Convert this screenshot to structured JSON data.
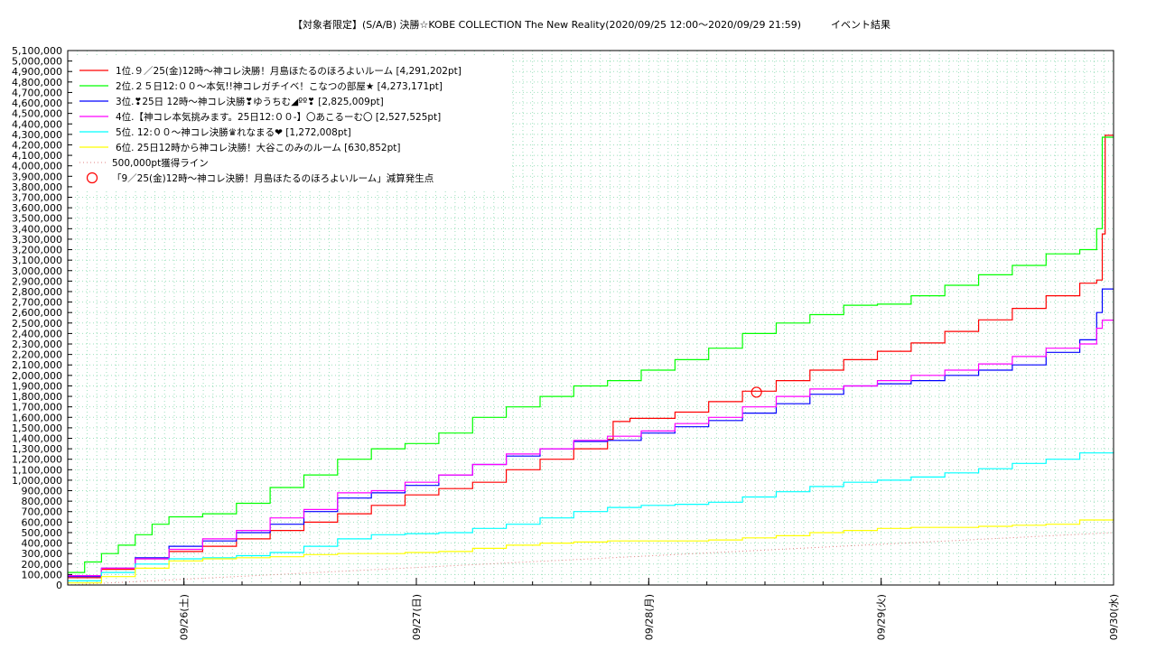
{
  "chart_data": {
    "type": "line",
    "title": "【対象者限定】(S/A/B) 決勝☆KOBE COLLECTION The New Reality(2020/09/25 12:00〜2020/09/29 21:59)　　　イベント結果",
    "xlabel": "",
    "ylabel": "",
    "grid": true,
    "legend_position": "top-left",
    "x_tick_labels": [
      "09/26(土)",
      "09/27(日)",
      "09/28(月)",
      "09/29(火)",
      "09/30(水)"
    ],
    "x_range": [
      "2020/09/25 12:00",
      "2020/09/30 00:00"
    ],
    "ylim": [
      0,
      5100000
    ],
    "y_tick_step": 100000,
    "border_line": {
      "name": "500,000pt獲得ライン",
      "color": "#e08080",
      "start": 0,
      "end": 500000
    },
    "series": [
      {
        "name": "1位.９／25(金)12時〜神コレ決勝！月島ほたるのほろよいルーム [4,291,202pt]",
        "color": "#ff0000",
        "points": [
          [
            0,
            70000
          ],
          [
            6,
            150000
          ],
          [
            12,
            250000
          ],
          [
            18,
            320000
          ],
          [
            24,
            370000
          ],
          [
            30,
            440000
          ],
          [
            36,
            520000
          ],
          [
            42,
            600000
          ],
          [
            48,
            680000
          ],
          [
            54,
            760000
          ],
          [
            60,
            860000
          ],
          [
            66,
            920000
          ],
          [
            72,
            980000
          ],
          [
            78,
            1100000
          ],
          [
            84,
            1200000
          ],
          [
            90,
            1300000
          ],
          [
            96,
            1390000
          ],
          [
            97,
            1560000
          ],
          [
            100,
            1590000
          ],
          [
            108,
            1650000
          ],
          [
            114,
            1750000
          ],
          [
            120,
            1850000
          ],
          [
            126,
            1950000
          ],
          [
            132,
            2050000
          ],
          [
            138,
            2150000
          ],
          [
            144,
            2230000
          ],
          [
            150,
            2310000
          ],
          [
            156,
            2420000
          ],
          [
            162,
            2530000
          ],
          [
            168,
            2640000
          ],
          [
            174,
            2760000
          ],
          [
            180,
            2880000
          ],
          [
            183,
            2910000
          ],
          [
            184,
            3350000
          ],
          [
            184.5,
            4291202
          ],
          [
            186,
            4291202
          ]
        ]
      },
      {
        "name": "2位.２５日12:００〜本気!!神コレガチイベ！こなつの部屋★ [4,273,171pt]",
        "color": "#00ff00",
        "points": [
          [
            0,
            120000
          ],
          [
            3,
            220000
          ],
          [
            6,
            300000
          ],
          [
            9,
            380000
          ],
          [
            12,
            480000
          ],
          [
            15,
            580000
          ],
          [
            18,
            650000
          ],
          [
            24,
            680000
          ],
          [
            30,
            780000
          ],
          [
            36,
            930000
          ],
          [
            42,
            1050000
          ],
          [
            48,
            1200000
          ],
          [
            54,
            1300000
          ],
          [
            60,
            1350000
          ],
          [
            66,
            1450000
          ],
          [
            72,
            1600000
          ],
          [
            78,
            1700000
          ],
          [
            84,
            1800000
          ],
          [
            90,
            1900000
          ],
          [
            96,
            1950000
          ],
          [
            102,
            2050000
          ],
          [
            108,
            2150000
          ],
          [
            114,
            2260000
          ],
          [
            120,
            2400000
          ],
          [
            126,
            2500000
          ],
          [
            132,
            2580000
          ],
          [
            138,
            2670000
          ],
          [
            144,
            2680000
          ],
          [
            150,
            2760000
          ],
          [
            156,
            2860000
          ],
          [
            162,
            2960000
          ],
          [
            168,
            3050000
          ],
          [
            174,
            3160000
          ],
          [
            180,
            3200000
          ],
          [
            183,
            3400000
          ],
          [
            184,
            4273171
          ],
          [
            186,
            4273171
          ]
        ]
      },
      {
        "name": "3位.❣25日 12時〜神コレ決勝❣ゆうちむ◢ºº❣ [2,825,009pt]",
        "color": "#0000ff",
        "points": [
          [
            0,
            80000
          ],
          [
            6,
            160000
          ],
          [
            12,
            260000
          ],
          [
            18,
            370000
          ],
          [
            24,
            420000
          ],
          [
            30,
            500000
          ],
          [
            36,
            580000
          ],
          [
            42,
            700000
          ],
          [
            48,
            830000
          ],
          [
            54,
            880000
          ],
          [
            60,
            950000
          ],
          [
            66,
            1050000
          ],
          [
            72,
            1150000
          ],
          [
            78,
            1230000
          ],
          [
            84,
            1300000
          ],
          [
            90,
            1370000
          ],
          [
            96,
            1380000
          ],
          [
            102,
            1450000
          ],
          [
            108,
            1510000
          ],
          [
            114,
            1570000
          ],
          [
            120,
            1640000
          ],
          [
            126,
            1730000
          ],
          [
            132,
            1820000
          ],
          [
            138,
            1900000
          ],
          [
            144,
            1920000
          ],
          [
            150,
            1950000
          ],
          [
            156,
            2000000
          ],
          [
            162,
            2050000
          ],
          [
            168,
            2100000
          ],
          [
            174,
            2220000
          ],
          [
            180,
            2340000
          ],
          [
            183,
            2600000
          ],
          [
            184,
            2825009
          ],
          [
            186,
            2825009
          ]
        ]
      },
      {
        "name": "4位.【神コレ本気挑みます。25日12:００-】〇あこるーむ〇 [2,527,525pt]",
        "color": "#ff00ff",
        "points": [
          [
            0,
            90000
          ],
          [
            6,
            160000
          ],
          [
            12,
            250000
          ],
          [
            18,
            340000
          ],
          [
            24,
            440000
          ],
          [
            30,
            520000
          ],
          [
            36,
            640000
          ],
          [
            42,
            720000
          ],
          [
            48,
            880000
          ],
          [
            54,
            900000
          ],
          [
            60,
            980000
          ],
          [
            66,
            1050000
          ],
          [
            72,
            1150000
          ],
          [
            78,
            1250000
          ],
          [
            84,
            1300000
          ],
          [
            90,
            1380000
          ],
          [
            96,
            1420000
          ],
          [
            102,
            1470000
          ],
          [
            108,
            1540000
          ],
          [
            114,
            1600000
          ],
          [
            120,
            1700000
          ],
          [
            126,
            1800000
          ],
          [
            132,
            1870000
          ],
          [
            138,
            1900000
          ],
          [
            144,
            1950000
          ],
          [
            150,
            2000000
          ],
          [
            156,
            2050000
          ],
          [
            162,
            2110000
          ],
          [
            168,
            2180000
          ],
          [
            174,
            2260000
          ],
          [
            180,
            2300000
          ],
          [
            183,
            2450000
          ],
          [
            184,
            2527525
          ],
          [
            186,
            2527525
          ]
        ]
      },
      {
        "name": "5位. 12:００〜神コレ決勝♛れなまる❤ [1,272,008pt]",
        "color": "#00ffff",
        "points": [
          [
            0,
            40000
          ],
          [
            6,
            120000
          ],
          [
            12,
            200000
          ],
          [
            18,
            250000
          ],
          [
            24,
            260000
          ],
          [
            30,
            280000
          ],
          [
            36,
            310000
          ],
          [
            42,
            370000
          ],
          [
            48,
            440000
          ],
          [
            54,
            480000
          ],
          [
            60,
            490000
          ],
          [
            66,
            500000
          ],
          [
            72,
            540000
          ],
          [
            78,
            580000
          ],
          [
            84,
            640000
          ],
          [
            90,
            700000
          ],
          [
            96,
            740000
          ],
          [
            102,
            760000
          ],
          [
            108,
            770000
          ],
          [
            114,
            790000
          ],
          [
            120,
            840000
          ],
          [
            126,
            890000
          ],
          [
            132,
            940000
          ],
          [
            138,
            980000
          ],
          [
            144,
            1000000
          ],
          [
            150,
            1030000
          ],
          [
            156,
            1070000
          ],
          [
            162,
            1110000
          ],
          [
            168,
            1160000
          ],
          [
            174,
            1200000
          ],
          [
            180,
            1260000
          ],
          [
            186,
            1272008
          ]
        ]
      },
      {
        "name": "6位. 25日12時から神コレ決勝！大谷このみのルーム [630,852pt]",
        "color": "#ffff00",
        "points": [
          [
            0,
            20000
          ],
          [
            6,
            80000
          ],
          [
            12,
            160000
          ],
          [
            18,
            230000
          ],
          [
            24,
            250000
          ],
          [
            30,
            260000
          ],
          [
            36,
            270000
          ],
          [
            42,
            290000
          ],
          [
            48,
            300000
          ],
          [
            54,
            300000
          ],
          [
            60,
            310000
          ],
          [
            66,
            320000
          ],
          [
            72,
            350000
          ],
          [
            78,
            380000
          ],
          [
            84,
            400000
          ],
          [
            90,
            410000
          ],
          [
            96,
            420000
          ],
          [
            102,
            420000
          ],
          [
            108,
            420000
          ],
          [
            114,
            430000
          ],
          [
            120,
            450000
          ],
          [
            126,
            470000
          ],
          [
            132,
            500000
          ],
          [
            138,
            520000
          ],
          [
            144,
            540000
          ],
          [
            150,
            550000
          ],
          [
            156,
            550000
          ],
          [
            162,
            560000
          ],
          [
            168,
            570000
          ],
          [
            174,
            580000
          ],
          [
            180,
            620000
          ],
          [
            186,
            630852
          ]
        ]
      }
    ],
    "annotation": {
      "label": "「9／25(金)12時〜神コレ決勝！月島ほたるのほろよいルーム」減算発生点",
      "x": 122.5,
      "y": 1840000,
      "color": "#ff0000",
      "marker": "circle"
    }
  }
}
